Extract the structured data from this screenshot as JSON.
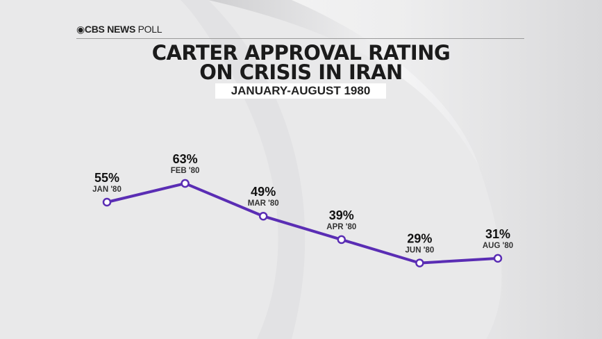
{
  "brand": {
    "logo": "CBS",
    "name": "NEWS",
    "suffix": "POLL"
  },
  "title_line1": "CARTER APPROVAL RATING",
  "title_line2": "ON CRISIS IN IRAN",
  "subtitle": "JANUARY-AUGUST 1980",
  "colors": {
    "line": "#5a2db4",
    "background": "#e9e9ea"
  },
  "chart_data": {
    "type": "line",
    "categories": [
      "JAN '80",
      "FEB '80",
      "MAR '80",
      "APR '80",
      "JUN '80",
      "AUG '80"
    ],
    "values": [
      55,
      63,
      49,
      39,
      29,
      31
    ],
    "data_labels": [
      "55%",
      "63%",
      "49%",
      "39%",
      "29%",
      "31%"
    ],
    "unit": "%",
    "grid": false,
    "legend": "none"
  }
}
